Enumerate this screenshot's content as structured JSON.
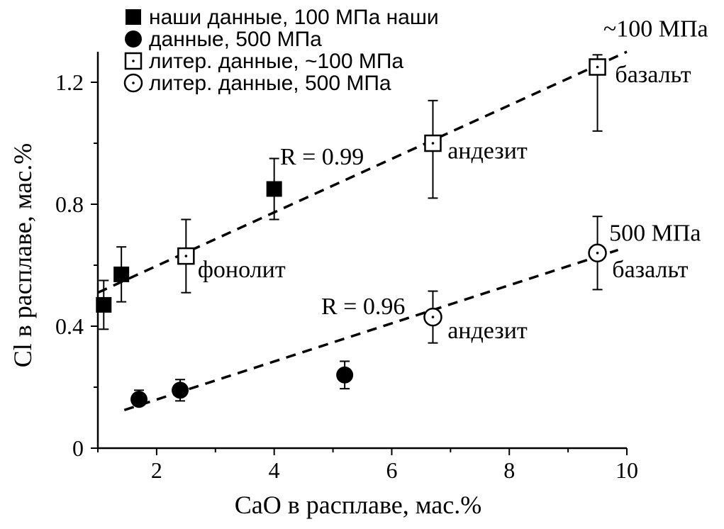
{
  "chart_data": {
    "type": "scatter",
    "xlabel": "CaO в расплаве, мас.%",
    "ylabel": "Cl в расплаве, мас.%",
    "xlim": [
      1,
      10
    ],
    "ylim": [
      0,
      1.3
    ],
    "xticks": [
      2,
      4,
      6,
      8,
      10
    ],
    "yticks": [
      0,
      0.4,
      0.8,
      1.2
    ],
    "xtick_labels": [
      "2",
      "4",
      "6",
      "8",
      "10"
    ],
    "ytick_labels": [
      "0",
      "0.4",
      "0.8",
      "1.2"
    ],
    "legend_position": "top-left",
    "series": [
      {
        "name": "наши данные, 100 МПа наши",
        "marker": "filled-square",
        "points": [
          {
            "x": 1.1,
            "y": 0.47,
            "ylo": 0.39,
            "yhi": 0.55
          },
          {
            "x": 1.4,
            "y": 0.57,
            "ylo": 0.48,
            "yhi": 0.66
          },
          {
            "x": 4.0,
            "y": 0.85,
            "ylo": 0.75,
            "yhi": 0.95
          }
        ]
      },
      {
        "name": "данные, 500 МПа",
        "marker": "filled-circle",
        "points": [
          {
            "x": 1.7,
            "y": 0.16,
            "ylo": 0.14,
            "yhi": 0.19
          },
          {
            "x": 2.4,
            "y": 0.19,
            "ylo": 0.155,
            "yhi": 0.225
          },
          {
            "x": 5.2,
            "y": 0.24,
            "ylo": 0.195,
            "yhi": 0.285
          }
        ]
      },
      {
        "name": "литер.  данные, ~100 МПа",
        "marker": "open-square-dot",
        "points": [
          {
            "x": 2.5,
            "y": 0.63,
            "ylo": 0.51,
            "yhi": 0.75
          },
          {
            "x": 6.7,
            "y": 1.0,
            "ylo": 0.82,
            "yhi": 1.14
          },
          {
            "x": 9.5,
            "y": 1.25,
            "ylo": 1.04,
            "yhi": 1.29
          }
        ]
      },
      {
        "name": "литер.  данные, 500 МПа",
        "marker": "open-circle-dot",
        "points": [
          {
            "x": 6.7,
            "y": 0.43,
            "ylo": 0.345,
            "yhi": 0.515
          },
          {
            "x": 9.5,
            "y": 0.64,
            "ylo": 0.52,
            "yhi": 0.76
          }
        ]
      }
    ],
    "fit_lines": [
      {
        "label": "R = 0.99",
        "from": [
          1.0,
          0.51
        ],
        "to": [
          10.0,
          1.3
        ]
      },
      {
        "label": "R = 0.96",
        "from": [
          1.45,
          0.125
        ],
        "to": [
          9.85,
          0.65
        ]
      }
    ],
    "annotations": [
      {
        "text": "~100 МПа",
        "x": 9.6,
        "y": 1.35
      },
      {
        "text": "базальт",
        "x": 9.8,
        "y": 1.2
      },
      {
        "text": "андезит",
        "x": 6.95,
        "y": 0.95
      },
      {
        "text": "фонолит",
        "x": 2.7,
        "y": 0.56
      },
      {
        "text": "R = 0.99",
        "x": 4.1,
        "y": 0.93
      },
      {
        "text": "R = 0.96",
        "x": 4.8,
        "y": 0.44
      },
      {
        "text": "500 МПа",
        "x": 9.7,
        "y": 0.68
      },
      {
        "text": "базальт",
        "x": 9.75,
        "y": 0.56
      },
      {
        "text": "андезит",
        "x": 6.95,
        "y": 0.36
      }
    ]
  }
}
